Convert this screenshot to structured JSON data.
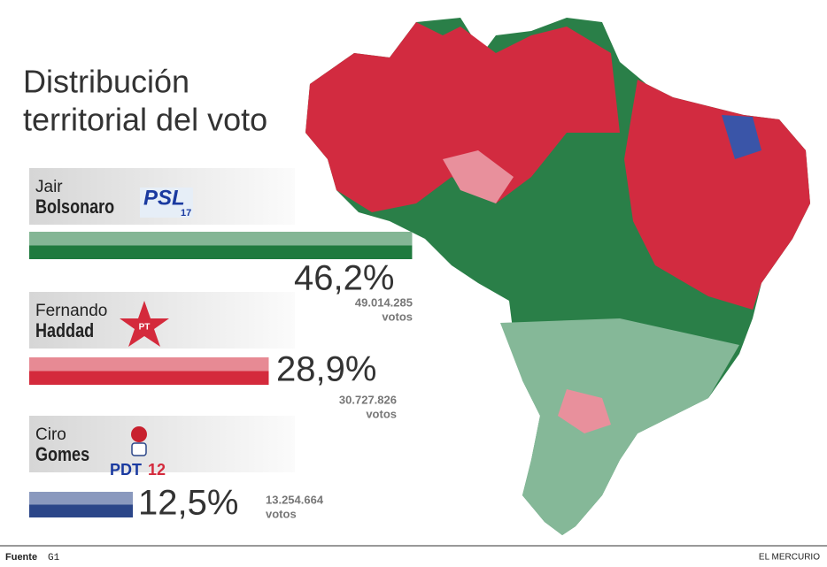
{
  "chart_data": {
    "type": "bar",
    "title": "Distribución territorial del voto",
    "candidates": [
      {
        "first": "Jair",
        "last": "Bolsonaro",
        "party": "PSL",
        "party_number": "17"
      },
      {
        "first": "Fernando",
        "last": "Haddad",
        "party": "PT"
      },
      {
        "first": "Ciro",
        "last": "Gomes",
        "party": "PDT",
        "party_number": "12"
      }
    ],
    "values": [
      46.2,
      28.9,
      12.5
    ],
    "value_labels": [
      "46,2%",
      "28,9%",
      "12,5%"
    ],
    "votes": [
      "49.014.285",
      "30.727.826",
      "13.254.664"
    ],
    "votes_unit": "votos",
    "colors": [
      "#1f7a3e",
      "#d42a3c",
      "#2b4689"
    ],
    "xlim": [
      0,
      50
    ]
  },
  "footer": {
    "source_label": "Fuente",
    "source": "G1",
    "publisher": "EL MERCURIO"
  }
}
